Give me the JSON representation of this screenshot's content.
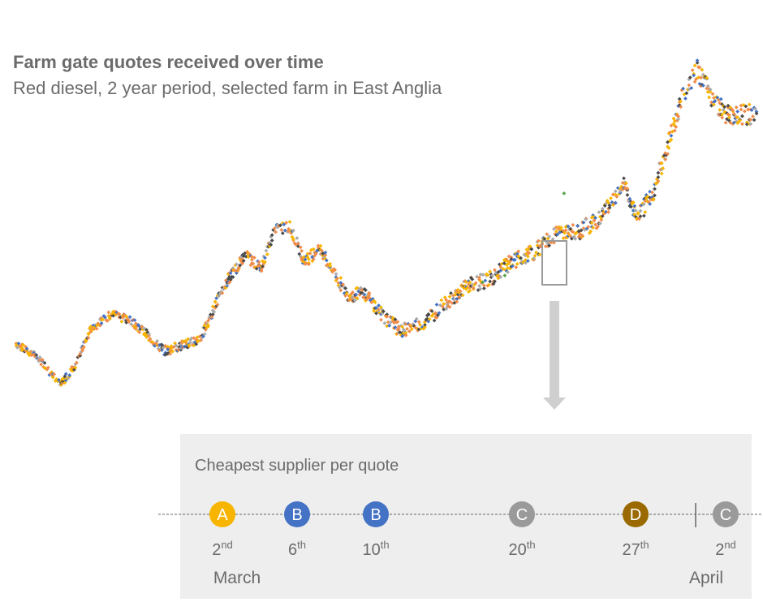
{
  "title": "Farm gate quotes received over time",
  "subtitle": "Red diesel, 2 year period, selected farm in East Anglia",
  "colors": {
    "orange": "#f08c4a",
    "yellow": "#f7b500",
    "blue": "#4472c4",
    "dark": "#4a4a4a",
    "gray": "#a9a9a9",
    "green": "#5aa34a",
    "brown": "#9a6a00"
  },
  "chart_data": {
    "type": "scatter",
    "title": "Farm gate quotes received over time",
    "subtitle": "Red diesel, 2 year period, selected farm in East Anglia",
    "x_label": "",
    "y_label": "",
    "x_range": [
      0,
      100
    ],
    "y_range": [
      0,
      100
    ],
    "grid": false,
    "legend": "none",
    "trend": [
      [
        0,
        18
      ],
      [
        3,
        14
      ],
      [
        6,
        6
      ],
      [
        8,
        12
      ],
      [
        10,
        22
      ],
      [
        13,
        27
      ],
      [
        16,
        24
      ],
      [
        18,
        20
      ],
      [
        20,
        16
      ],
      [
        23,
        18
      ],
      [
        25,
        20
      ],
      [
        28,
        35
      ],
      [
        31,
        44
      ],
      [
        33,
        40
      ],
      [
        35,
        52
      ],
      [
        37,
        52
      ],
      [
        39,
        42
      ],
      [
        41,
        46
      ],
      [
        43,
        38
      ],
      [
        45,
        32
      ],
      [
        47,
        33
      ],
      [
        50,
        25
      ],
      [
        52,
        22
      ],
      [
        55,
        24
      ],
      [
        58,
        30
      ],
      [
        61,
        35
      ],
      [
        64,
        37
      ],
      [
        67,
        42
      ],
      [
        70,
        45
      ],
      [
        73,
        50
      ],
      [
        76,
        51
      ],
      [
        79,
        55
      ],
      [
        82,
        65
      ],
      [
        84,
        55
      ],
      [
        86,
        62
      ],
      [
        88,
        76
      ],
      [
        90,
        90
      ],
      [
        92,
        98
      ],
      [
        94,
        90
      ],
      [
        96,
        85
      ],
      [
        99,
        85
      ]
    ]
  },
  "callout": {
    "title": "Cheapest supplier per quote",
    "markers": [
      {
        "letter": "A",
        "day": "2",
        "suffix": "nd",
        "color": "#f7b500"
      },
      {
        "letter": "B",
        "day": "6",
        "suffix": "th",
        "color": "#4472c4"
      },
      {
        "letter": "B",
        "day": "10",
        "suffix": "th",
        "color": "#4472c4"
      },
      {
        "letter": "C",
        "day": "20",
        "suffix": "th",
        "color": "#9a9a9a"
      },
      {
        "letter": "D",
        "day": "27",
        "suffix": "th",
        "color": "#9a6a00"
      },
      {
        "letter": "C",
        "day": "2",
        "suffix": "nd",
        "color": "#9a9a9a"
      }
    ],
    "months": [
      "March",
      "April"
    ]
  }
}
